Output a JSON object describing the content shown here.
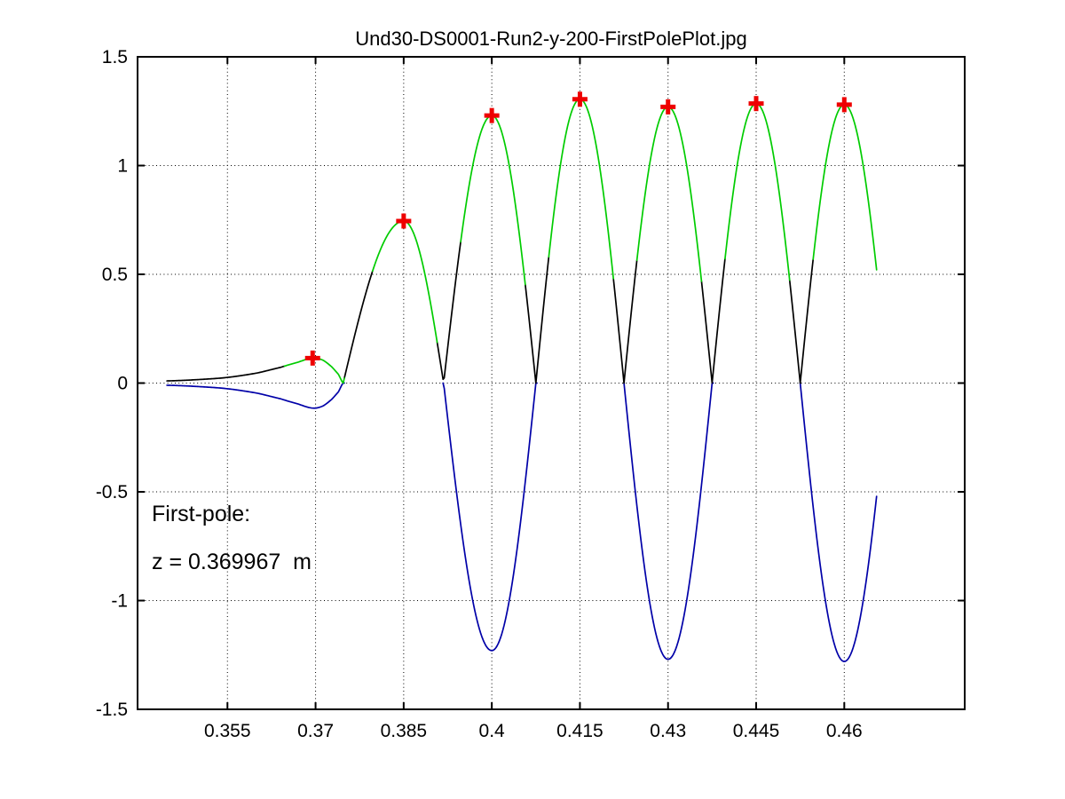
{
  "chart_data": {
    "type": "line",
    "title": "Und30-DS0001-Run2-y-200-FirstPolePlot.jpg",
    "xlim": [
      0.3397,
      0.4805
    ],
    "ylim": [
      -1.5,
      1.5
    ],
    "grid": "dotted",
    "legend": "none",
    "xlabel": "",
    "ylabel": "",
    "xticks": [
      0.355,
      0.37,
      0.385,
      0.4,
      0.415,
      0.43,
      0.445,
      0.46
    ],
    "xtick_labels": [
      "0.355",
      "0.37",
      "0.385",
      "0.4",
      "0.415",
      "0.43",
      "0.445",
      "0.46"
    ],
    "yticks": [
      1.5,
      1,
      0.5,
      0,
      -0.5,
      -1,
      -1.5
    ],
    "ytick_labels": [
      "1.5",
      "1",
      "0.5",
      "0",
      "-0.5",
      "-1",
      "-1.5"
    ],
    "annotation": {
      "line1": "First-pole:",
      "line2": "z = 0.369967  m"
    },
    "first_pole_z_m": 0.369967,
    "series_model": {
      "description": "Black curve = rectified field |B(z)|; green = fitted cap near each pole peak; blue = signal B(z) where negative; red plus = detected pole peaks.",
      "data_start": 0.3447,
      "data_end": 0.4655,
      "tail_end": 0.3747,
      "tail_abs_points": [
        [
          0.3447,
          0.01
        ],
        [
          0.35,
          0.016
        ],
        [
          0.355,
          0.026
        ],
        [
          0.36,
          0.046
        ],
        [
          0.364,
          0.072
        ],
        [
          0.367,
          0.096
        ],
        [
          0.3695,
          0.115
        ],
        [
          0.3712,
          0.106
        ],
        [
          0.3727,
          0.076
        ],
        [
          0.3739,
          0.04
        ],
        [
          0.3747,
          0.0
        ]
      ],
      "lobes": [
        {
          "z_left": 0.3747,
          "z_peak": 0.385,
          "z_right": 0.3918,
          "amp": 0.745,
          "sign": 1
        },
        {
          "z_left": 0.3918,
          "z_peak": 0.4,
          "z_right": 0.4075,
          "amp": 1.23,
          "sign": -1
        },
        {
          "z_left": 0.4075,
          "z_peak": 0.415,
          "z_right": 0.4225,
          "amp": 1.305,
          "sign": 1
        },
        {
          "z_left": 0.4225,
          "z_peak": 0.43,
          "z_right": 0.4375,
          "amp": 1.27,
          "sign": -1
        },
        {
          "z_left": 0.4375,
          "z_peak": 0.445,
          "z_right": 0.4525,
          "amp": 1.285,
          "sign": 1
        },
        {
          "z_left": 0.4525,
          "z_peak": 0.46,
          "z_right": 0.4675,
          "amp": 1.28,
          "sign": -1
        }
      ],
      "green_halfwidth": 0.0055,
      "green_bump_range": [
        0.3645,
        0.3747
      ]
    },
    "pole_markers": [
      [
        0.3695,
        0.115
      ],
      [
        0.385,
        0.745
      ],
      [
        0.4,
        1.23
      ],
      [
        0.415,
        1.305
      ],
      [
        0.43,
        1.27
      ],
      [
        0.445,
        1.285
      ],
      [
        0.46,
        1.28
      ]
    ],
    "colors": {
      "background": "#FFFFFF",
      "axis": "#000000",
      "grid": "#000000",
      "rectified_curve": "#000000",
      "peak_fit_curve": "#00CC00",
      "negative_signal_curve": "#0000A8",
      "pole_marker": "#EE0000"
    }
  }
}
